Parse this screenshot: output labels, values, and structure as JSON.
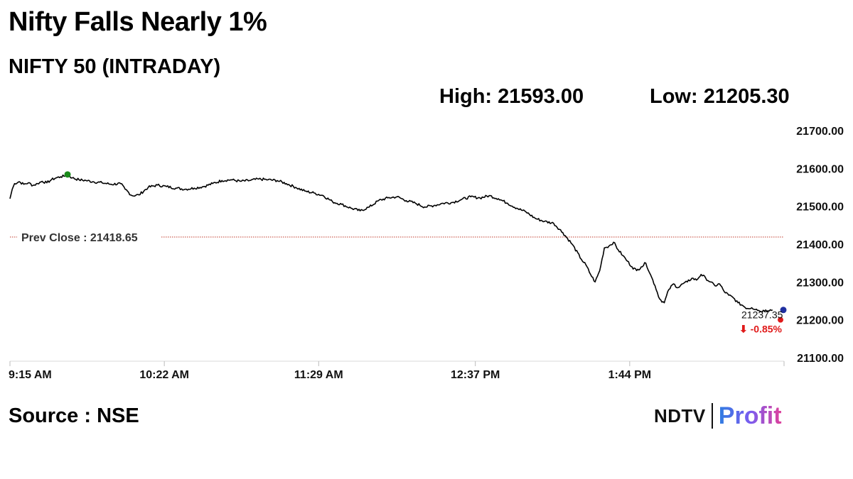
{
  "header": {
    "headline": "Nifty Falls Nearly 1%",
    "subtitle": "NIFTY 50 (INTRADAY)",
    "high_label": "High: 21593.00",
    "low_label": "Low: 21205.30"
  },
  "footer": {
    "source": "Source : NSE",
    "brand_left": "NDTV",
    "brand_right": "Profit"
  },
  "colors": {
    "line": "#000000",
    "prev_close": "#c0392b",
    "high_marker": "#1a8a1a",
    "last_marker": "#1f2fa0",
    "down": "#e01a1a"
  },
  "chart_data": {
    "type": "line",
    "title": "NIFTY 50 (INTRADAY)",
    "xlabel": "",
    "ylabel": "",
    "ylim": [
      21100,
      21700
    ],
    "yticks": [
      "21700.00",
      "21600.00",
      "21500.00",
      "21400.00",
      "21300.00",
      "21200.00",
      "21100.00"
    ],
    "xticks": [
      "9:15 AM",
      "10:22 AM",
      "11:29 AM",
      "12:37 PM",
      "1:44 PM"
    ],
    "xticks_minutes": [
      0,
      67,
      134,
      202,
      269
    ],
    "x_range_minutes": [
      0,
      336
    ],
    "prev_close_label": "Prev Close : 21418.65",
    "prev_close": 21418.65,
    "high": {
      "x": 25,
      "y": 21584
    },
    "last_value_label": "21237.35",
    "last_change_label": "⬇ -0.85%",
    "last_point": {
      "x": 331,
      "y": 21226
    },
    "grid": false,
    "series": [
      {
        "x": [
          0,
          1,
          2,
          4,
          6,
          8,
          10,
          12,
          14,
          16,
          18,
          20,
          22,
          24,
          25,
          27,
          30,
          33,
          36,
          40,
          44,
          48,
          50,
          53,
          56,
          60,
          64,
          68,
          72,
          76,
          80,
          84,
          88,
          92,
          96,
          100,
          104,
          108,
          112,
          116,
          120,
          124,
          128,
          132,
          136,
          140,
          144,
          148,
          152,
          156,
          160,
          164,
          168,
          172,
          176,
          180,
          184,
          188,
          192,
          196,
          200,
          204,
          208,
          212,
          216,
          220,
          224,
          228,
          232,
          236,
          240,
          244,
          248,
          250,
          252,
          254,
          256,
          258,
          260,
          262,
          264,
          266,
          268,
          270,
          272,
          274,
          276,
          278,
          280,
          282,
          284,
          286,
          288,
          290,
          292,
          294,
          296,
          298,
          300,
          302,
          304,
          306,
          308,
          310,
          312,
          314,
          316,
          318,
          320,
          322,
          324,
          326,
          328,
          331
        ],
        "y": [
          21520,
          21545,
          21560,
          21565,
          21558,
          21562,
          21555,
          21560,
          21566,
          21562,
          21570,
          21575,
          21578,
          21580,
          21584,
          21575,
          21570,
          21568,
          21565,
          21562,
          21558,
          21560,
          21545,
          21528,
          21530,
          21550,
          21556,
          21552,
          21548,
          21545,
          21548,
          21552,
          21560,
          21568,
          21570,
          21566,
          21568,
          21572,
          21570,
          21568,
          21560,
          21550,
          21540,
          21535,
          21528,
          21512,
          21505,
          21495,
          21488,
          21498,
          21515,
          21522,
          21525,
          21515,
          21508,
          21498,
          21502,
          21508,
          21510,
          21518,
          21525,
          21522,
          21528,
          21520,
          21508,
          21495,
          21485,
          21468,
          21460,
          21455,
          21430,
          21400,
          21360,
          21345,
          21320,
          21300,
          21330,
          21390,
          21395,
          21405,
          21385,
          21370,
          21355,
          21340,
          21330,
          21340,
          21350,
          21320,
          21290,
          21255,
          21245,
          21280,
          21295,
          21285,
          21295,
          21300,
          21310,
          21305,
          21320,
          21310,
          21300,
          21290,
          21295,
          21275,
          21265,
          21258,
          21245,
          21238,
          21230,
          21232,
          21228,
          21222,
          21226,
          21226
        ]
      }
    ]
  }
}
